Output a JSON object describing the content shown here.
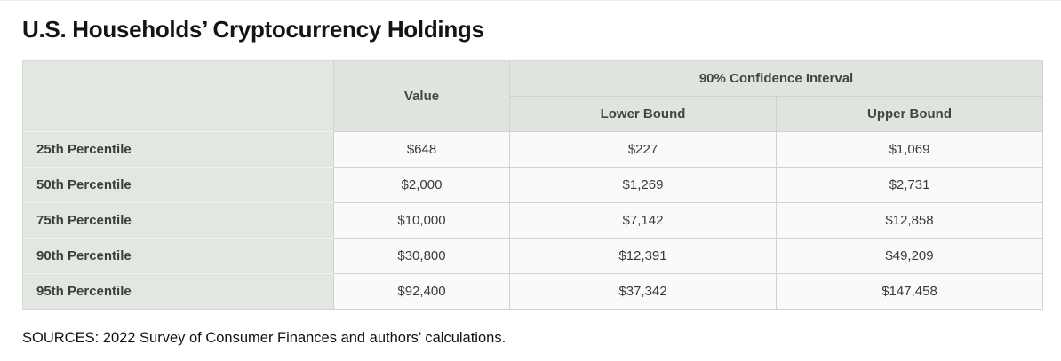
{
  "title": "U.S. Households’ Cryptocurrency Holdings",
  "table": {
    "headers": {
      "value": "Value",
      "confidence_interval": "90% Confidence Interval",
      "lower_bound": "Lower Bound",
      "upper_bound": "Upper Bound"
    },
    "rows": [
      {
        "label": "25th Percentile",
        "value": "$648",
        "lower": "$227",
        "upper": "$1,069"
      },
      {
        "label": "50th Percentile",
        "value": "$2,000",
        "lower": "$1,269",
        "upper": "$2,731"
      },
      {
        "label": "75th Percentile",
        "value": "$10,000",
        "lower": "$7,142",
        "upper": "$12,858"
      },
      {
        "label": "90th Percentile",
        "value": "$30,800",
        "lower": "$12,391",
        "upper": "$49,209"
      },
      {
        "label": "95th Percentile",
        "value": "$92,400",
        "lower": "$37,342",
        "upper": "$147,458"
      }
    ]
  },
  "sources": "SOURCES: 2022 Survey of Consumer Finances and authors’ calculations.",
  "colors": {
    "header_bg": "#dfe4de",
    "row_label_bg": "#e2e7e1",
    "data_cell_bg": "#f9faf9",
    "border": "#cfd2ce",
    "title_text": "#141414",
    "cell_text": "#3a3a3a"
  },
  "chart_data": {
    "type": "table",
    "title": "U.S. Households’ Cryptocurrency Holdings",
    "categories": [
      "25th Percentile",
      "50th Percentile",
      "75th Percentile",
      "90th Percentile",
      "95th Percentile"
    ],
    "series": [
      {
        "name": "Value",
        "values": [
          648,
          2000,
          10000,
          30800,
          92400
        ]
      },
      {
        "name": "90% Confidence Interval Lower Bound",
        "values": [
          227,
          1269,
          7142,
          12391,
          37342
        ]
      },
      {
        "name": "90% Confidence Interval Upper Bound",
        "values": [
          1069,
          2731,
          12858,
          49209,
          147458
        ]
      }
    ],
    "units": "USD",
    "source": "SOURCES: 2022 Survey of Consumer Finances and authors’ calculations."
  }
}
